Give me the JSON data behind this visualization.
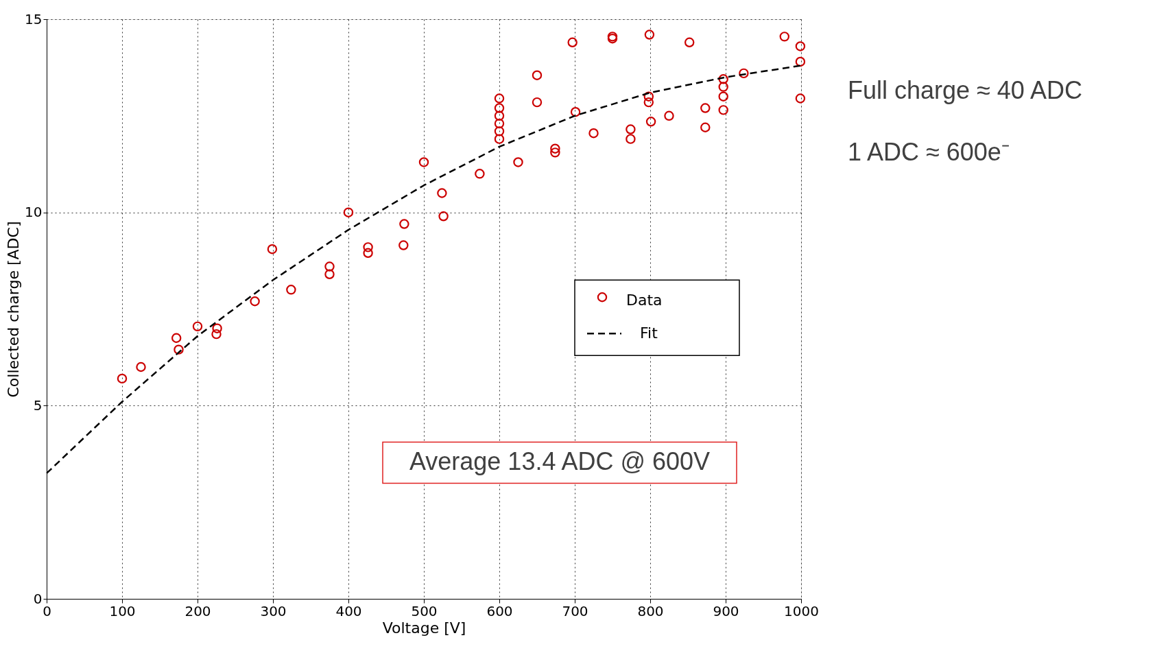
{
  "chart_data": {
    "type": "scatter",
    "xlabel": "Voltage [V]",
    "ylabel": "Collected charge [ADC]",
    "xlim": [
      0,
      1000
    ],
    "ylim": [
      0,
      15
    ],
    "xticks": [
      0,
      100,
      200,
      300,
      400,
      500,
      600,
      700,
      800,
      900,
      1000
    ],
    "yticks": [
      0,
      5,
      10,
      15
    ],
    "grid": true,
    "legend": "right",
    "marker": "circle",
    "series": [
      {
        "name": "Data",
        "color": "#cc0000",
        "x": [
          100,
          125,
          172,
          175,
          200,
          226,
          225,
          276,
          299,
          324,
          375,
          375,
          400,
          426,
          426,
          474,
          473,
          500,
          524,
          526,
          574,
          600,
          600,
          600,
          600,
          600,
          600,
          625,
          650,
          650,
          674,
          674,
          697,
          701,
          725,
          750,
          750,
          774,
          774,
          799,
          798,
          798,
          801,
          825,
          852,
          873,
          873,
          897,
          897,
          897,
          897,
          924,
          978,
          999,
          999,
          999
        ],
        "values": [
          5.7,
          6.0,
          6.75,
          6.45,
          7.05,
          7.0,
          6.85,
          7.7,
          9.05,
          8.0,
          8.6,
          8.4,
          10.0,
          9.1,
          8.95,
          9.7,
          9.15,
          11.3,
          10.5,
          9.9,
          11.0,
          12.95,
          12.7,
          12.5,
          12.3,
          12.1,
          11.9,
          11.3,
          13.55,
          12.85,
          11.65,
          11.55,
          14.4,
          12.6,
          12.05,
          14.55,
          14.5,
          12.15,
          11.9,
          14.6,
          13.0,
          12.85,
          12.35,
          12.5,
          14.4,
          12.7,
          12.2,
          13.45,
          13.25,
          13.0,
          12.65,
          13.6,
          14.55,
          14.3,
          13.9,
          12.95
        ]
      },
      {
        "name": "Fit",
        "type": "line",
        "color": "#000000",
        "line_style": "dashed",
        "marker": "none",
        "x": [
          0,
          100,
          200,
          300,
          400,
          500,
          600,
          700,
          800,
          900,
          1000
        ],
        "values": [
          3.25,
          5.1,
          6.8,
          8.25,
          9.55,
          10.7,
          11.7,
          12.5,
          13.1,
          13.5,
          13.8
        ]
      }
    ],
    "annotations": [
      "Average 13.4 ADC @ 600V",
      "Full charge ≈ 40 ADC",
      "1 ADC ≈ 600e⁻"
    ]
  }
}
